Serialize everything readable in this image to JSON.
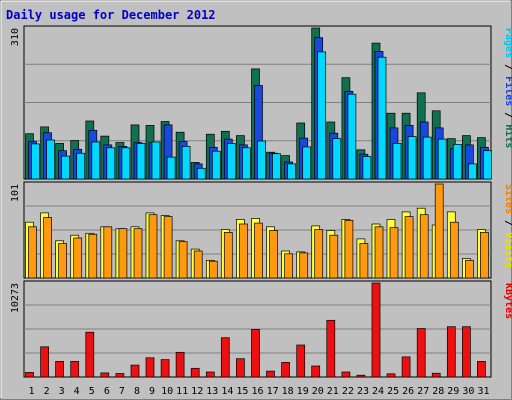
{
  "chart_data": {
    "type": "bar",
    "title": "Daily usage for December 2012",
    "categories": [
      "1",
      "2",
      "3",
      "4",
      "5",
      "6",
      "7",
      "8",
      "9",
      "10",
      "11",
      "12",
      "13",
      "14",
      "15",
      "16",
      "17",
      "18",
      "19",
      "20",
      "21",
      "22",
      "23",
      "24",
      "25",
      "26",
      "27",
      "28",
      "29",
      "30",
      "31"
    ],
    "weekend_days": [
      "1",
      "2",
      "8",
      "9",
      "15",
      "16",
      "22",
      "23",
      "29",
      "30"
    ],
    "panels": [
      {
        "id": "top",
        "ymax": 310,
        "ymax_label": "310",
        "ylabel_parts": [
          {
            "text": "Pages",
            "color": "#00c8f0"
          },
          {
            "text": " / ",
            "color": "#000000"
          },
          {
            "text": "Files",
            "color": "#1040e0"
          },
          {
            "text": " / ",
            "color": "#000000"
          },
          {
            "text": "Hits",
            "color": "#106a50"
          }
        ],
        "series": [
          {
            "name": "Hits",
            "color": "#107050",
            "values": [
              93,
              107,
              73,
              79,
              119,
              88,
              75,
              111,
              110,
              118,
              96,
              34,
              92,
              98,
              89,
              226,
              55,
              48,
              115,
              310,
              117,
              208,
              60,
              279,
              135,
              135,
              177,
              140,
              83,
              89,
              85
            ]
          },
          {
            "name": "Files",
            "color": "#1848e0",
            "values": [
              77,
              95,
              58,
              61,
              100,
              70,
              67,
              75,
              75,
              111,
              77,
              31,
              65,
              82,
              70,
              192,
              53,
              35,
              84,
              290,
              94,
              180,
              51,
              262,
              105,
              110,
              117,
              105,
              62,
              70,
              65
            ]
          },
          {
            "name": "Pages",
            "color": "#00d8ff",
            "values": [
              72,
              80,
              47,
              53,
              76,
              64,
              64,
              73,
              76,
              45,
              67,
              22,
              57,
              73,
              64,
              78,
              52,
              31,
              66,
              261,
              83,
              174,
              46,
              250,
              73,
              87,
              86,
              82,
              71,
              31,
              58
            ]
          }
        ]
      },
      {
        "id": "middle",
        "ymax": 101,
        "ymax_label": "101",
        "ylabel_parts": [
          {
            "text": "Sites",
            "color": "#f08000"
          },
          {
            "text": " / ",
            "color": "#000000"
          },
          {
            "text": "Visits",
            "color": "#e8e000"
          }
        ],
        "series": [
          {
            "name": "Visits",
            "color": "#ffff40",
            "values": [
              60,
              70,
              40,
              46,
              48,
              55,
              53,
              55,
              70,
              67,
              40,
              31,
              19,
              52,
              63,
              64,
              55,
              29,
              28,
              56,
              51,
              63,
              42,
              58,
              63,
              71,
              75,
              57,
              71,
              21,
              52
            ]
          },
          {
            "name": "Sites",
            "color": "#ff9a10",
            "values": [
              55,
              65,
              37,
              43,
              47,
              55,
              53,
              53,
              68,
              66,
              39,
              29,
              18,
              49,
              58,
              59,
              51,
              26,
              27,
              52,
              46,
              62,
              37,
              55,
              54,
              66,
              68,
              101,
              60,
              19,
              49
            ]
          }
        ]
      },
      {
        "id": "bottom",
        "ymax": 10273,
        "ymax_label": "10273",
        "ylabel_parts": [
          {
            "text": "KBytes",
            "color": "#e00000"
          }
        ],
        "series": [
          {
            "name": "KBytes",
            "color": "#ee1010",
            "values": [
              500,
              3300,
              1700,
              1700,
              4900,
              450,
              380,
              1300,
              2100,
              1900,
              2700,
              950,
              550,
              4300,
              2000,
              5200,
              650,
              1600,
              3500,
              1200,
              6200,
              550,
              200,
              10273,
              350,
              2200,
              5300,
              420,
              5500,
              5500,
              1700
            ]
          }
        ]
      }
    ]
  }
}
